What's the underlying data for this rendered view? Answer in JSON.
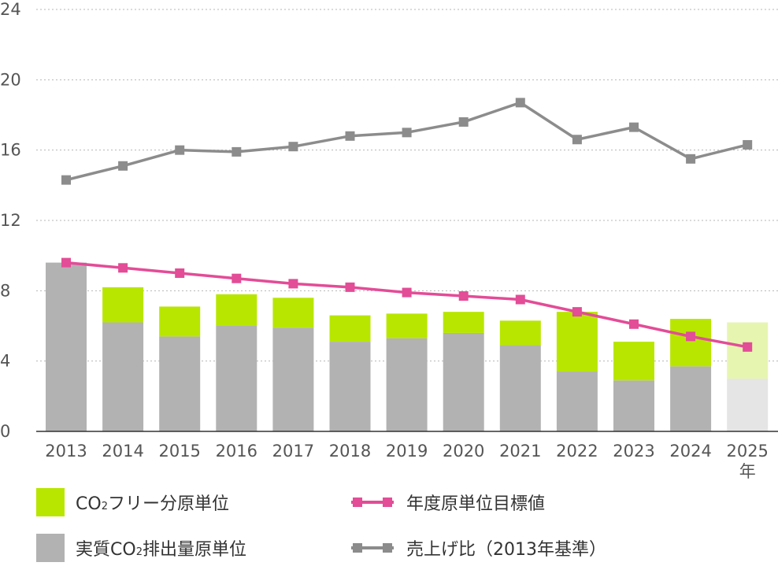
{
  "chart_data": {
    "type": "bar",
    "categories": [
      "2013",
      "2014",
      "2015",
      "2016",
      "2017",
      "2018",
      "2019",
      "2020",
      "2021",
      "2022",
      "2023",
      "2024",
      "2025"
    ],
    "x_unit_label": "年",
    "ylim": [
      0,
      24
    ],
    "yticks": [
      "0",
      "4",
      "8",
      "12",
      "16",
      "20",
      "24"
    ],
    "grid": true,
    "bar_series": [
      {
        "name": "実質CO₂排出量原単位",
        "color": "#b2b2b2",
        "values": [
          9.6,
          6.2,
          5.4,
          6.0,
          5.9,
          5.1,
          5.3,
          5.6,
          4.9,
          3.4,
          2.9,
          3.7,
          3.0
        ]
      },
      {
        "name": "CO₂フリー分原単位",
        "color": "#b8e600",
        "values": [
          0.0,
          2.0,
          1.7,
          1.8,
          1.7,
          1.5,
          1.4,
          1.2,
          1.4,
          3.4,
          2.2,
          2.7,
          3.2
        ]
      }
    ],
    "projection_category": "2025",
    "projection_colors": {
      "base": "#e5e5e5",
      "co2free": "#e6f5b0"
    },
    "line_series": [
      {
        "name": "年度原単位目標値",
        "color": "#e34c97",
        "values": [
          9.6,
          9.3,
          9.0,
          8.7,
          8.4,
          8.2,
          7.9,
          7.7,
          7.5,
          6.8,
          6.1,
          5.4,
          4.8
        ]
      },
      {
        "name": "売上げ比（2013年基準）",
        "color": "#8c8c8c",
        "values": [
          14.3,
          15.1,
          16.0,
          15.9,
          16.2,
          16.8,
          17.0,
          17.6,
          18.7,
          16.6,
          17.3,
          15.5,
          16.3
        ]
      }
    ]
  },
  "legend": {
    "co2free_pre": "CO",
    "co2free_sub": "2",
    "co2free_post": "フリー分原単位",
    "actual_pre": "実質CO",
    "actual_sub": "2",
    "actual_post": "排出量原単位",
    "target": "年度原単位目標値",
    "sales": "売上げ比（2013年基準）"
  }
}
